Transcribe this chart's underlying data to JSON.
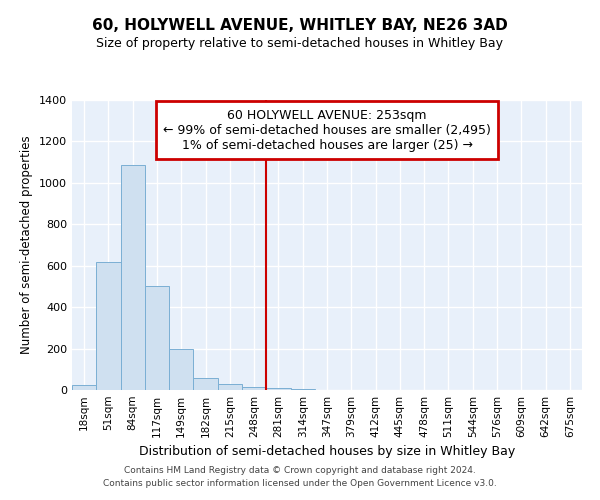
{
  "title": "60, HOLYWELL AVENUE, WHITLEY BAY, NE26 3AD",
  "subtitle": "Size of property relative to semi-detached houses in Whitley Bay",
  "xlabel": "Distribution of semi-detached houses by size in Whitley Bay",
  "ylabel": "Number of semi-detached properties",
  "bar_color": "#cfe0f0",
  "bar_edge_color": "#7aafd4",
  "background_color": "#e8f0fa",
  "grid_color": "#ffffff",
  "categories": [
    "18sqm",
    "51sqm",
    "84sqm",
    "117sqm",
    "149sqm",
    "182sqm",
    "215sqm",
    "248sqm",
    "281sqm",
    "314sqm",
    "347sqm",
    "379sqm",
    "412sqm",
    "445sqm",
    "478sqm",
    "511sqm",
    "544sqm",
    "576sqm",
    "609sqm",
    "642sqm",
    "675sqm"
  ],
  "values": [
    25,
    620,
    1085,
    500,
    200,
    60,
    30,
    15,
    12,
    6,
    0,
    0,
    0,
    0,
    0,
    0,
    0,
    0,
    0,
    0,
    0
  ],
  "vline_color": "#cc0000",
  "annotation_line1": "60 HOLYWELL AVENUE: 253sqm",
  "annotation_line2": "← 99% of semi-detached houses are smaller (2,495)",
  "annotation_line3": "1% of semi-detached houses are larger (25) →",
  "annotation_box_color": "#cc0000",
  "ylim": [
    0,
    1400
  ],
  "yticks": [
    0,
    200,
    400,
    600,
    800,
    1000,
    1200,
    1400
  ],
  "footer_line1": "Contains HM Land Registry data © Crown copyright and database right 2024.",
  "footer_line2": "Contains public sector information licensed under the Open Government Licence v3.0."
}
